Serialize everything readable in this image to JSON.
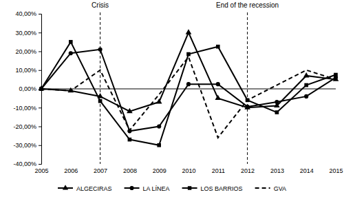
{
  "chart_data": {
    "type": "line",
    "categories": [
      "2005",
      "2006",
      "2007",
      "2008",
      "2009",
      "2010",
      "2011",
      "2012",
      "2013",
      "2014",
      "2015"
    ],
    "series": [
      {
        "name": "ALGECIRAS",
        "color": "#000000",
        "marker": "triangle",
        "line_style": "solid",
        "values": [
          0,
          -1,
          -4,
          -12,
          -7,
          30,
          -5,
          -10,
          -9,
          7,
          5
        ]
      },
      {
        "name": "LA LÍNEA",
        "color": "#000000",
        "marker": "circle",
        "line_style": "solid",
        "values": [
          0,
          19,
          21,
          -22.5,
          -20,
          2.5,
          2.5,
          -9.5,
          -7,
          -4,
          6
        ]
      },
      {
        "name": "LOS BARRIOS",
        "color": "#000000",
        "marker": "square",
        "line_style": "solid",
        "values": [
          0,
          25,
          -6.5,
          -27,
          -30,
          18.5,
          22.5,
          -6,
          -12.5,
          2,
          7.5
        ]
      },
      {
        "name": "GVA",
        "color": "#000000",
        "marker": "none",
        "line_style": "dashed",
        "values": [
          0,
          -1,
          10,
          -22,
          -3,
          17,
          -26,
          -6,
          2,
          10,
          5
        ]
      }
    ],
    "ylim": [
      -40,
      40
    ],
    "yticks": [
      {
        "value": -40,
        "label": "-40,00%"
      },
      {
        "value": -30,
        "label": "-30,00%"
      },
      {
        "value": -20,
        "label": "-20,00%"
      },
      {
        "value": -10,
        "label": "-10,00%"
      },
      {
        "value": 0,
        "label": "0,00%"
      },
      {
        "value": 10,
        "label": "10,00%"
      },
      {
        "value": 20,
        "label": "20,00%"
      },
      {
        "value": 30,
        "label": "30,00%"
      },
      {
        "value": 40,
        "label": "40,00%"
      }
    ],
    "grid": false,
    "legend": "bottom",
    "annotations": [
      {
        "text": "Crisis",
        "x": "2007"
      },
      {
        "text": "End of the recession",
        "x": "2012"
      }
    ]
  }
}
